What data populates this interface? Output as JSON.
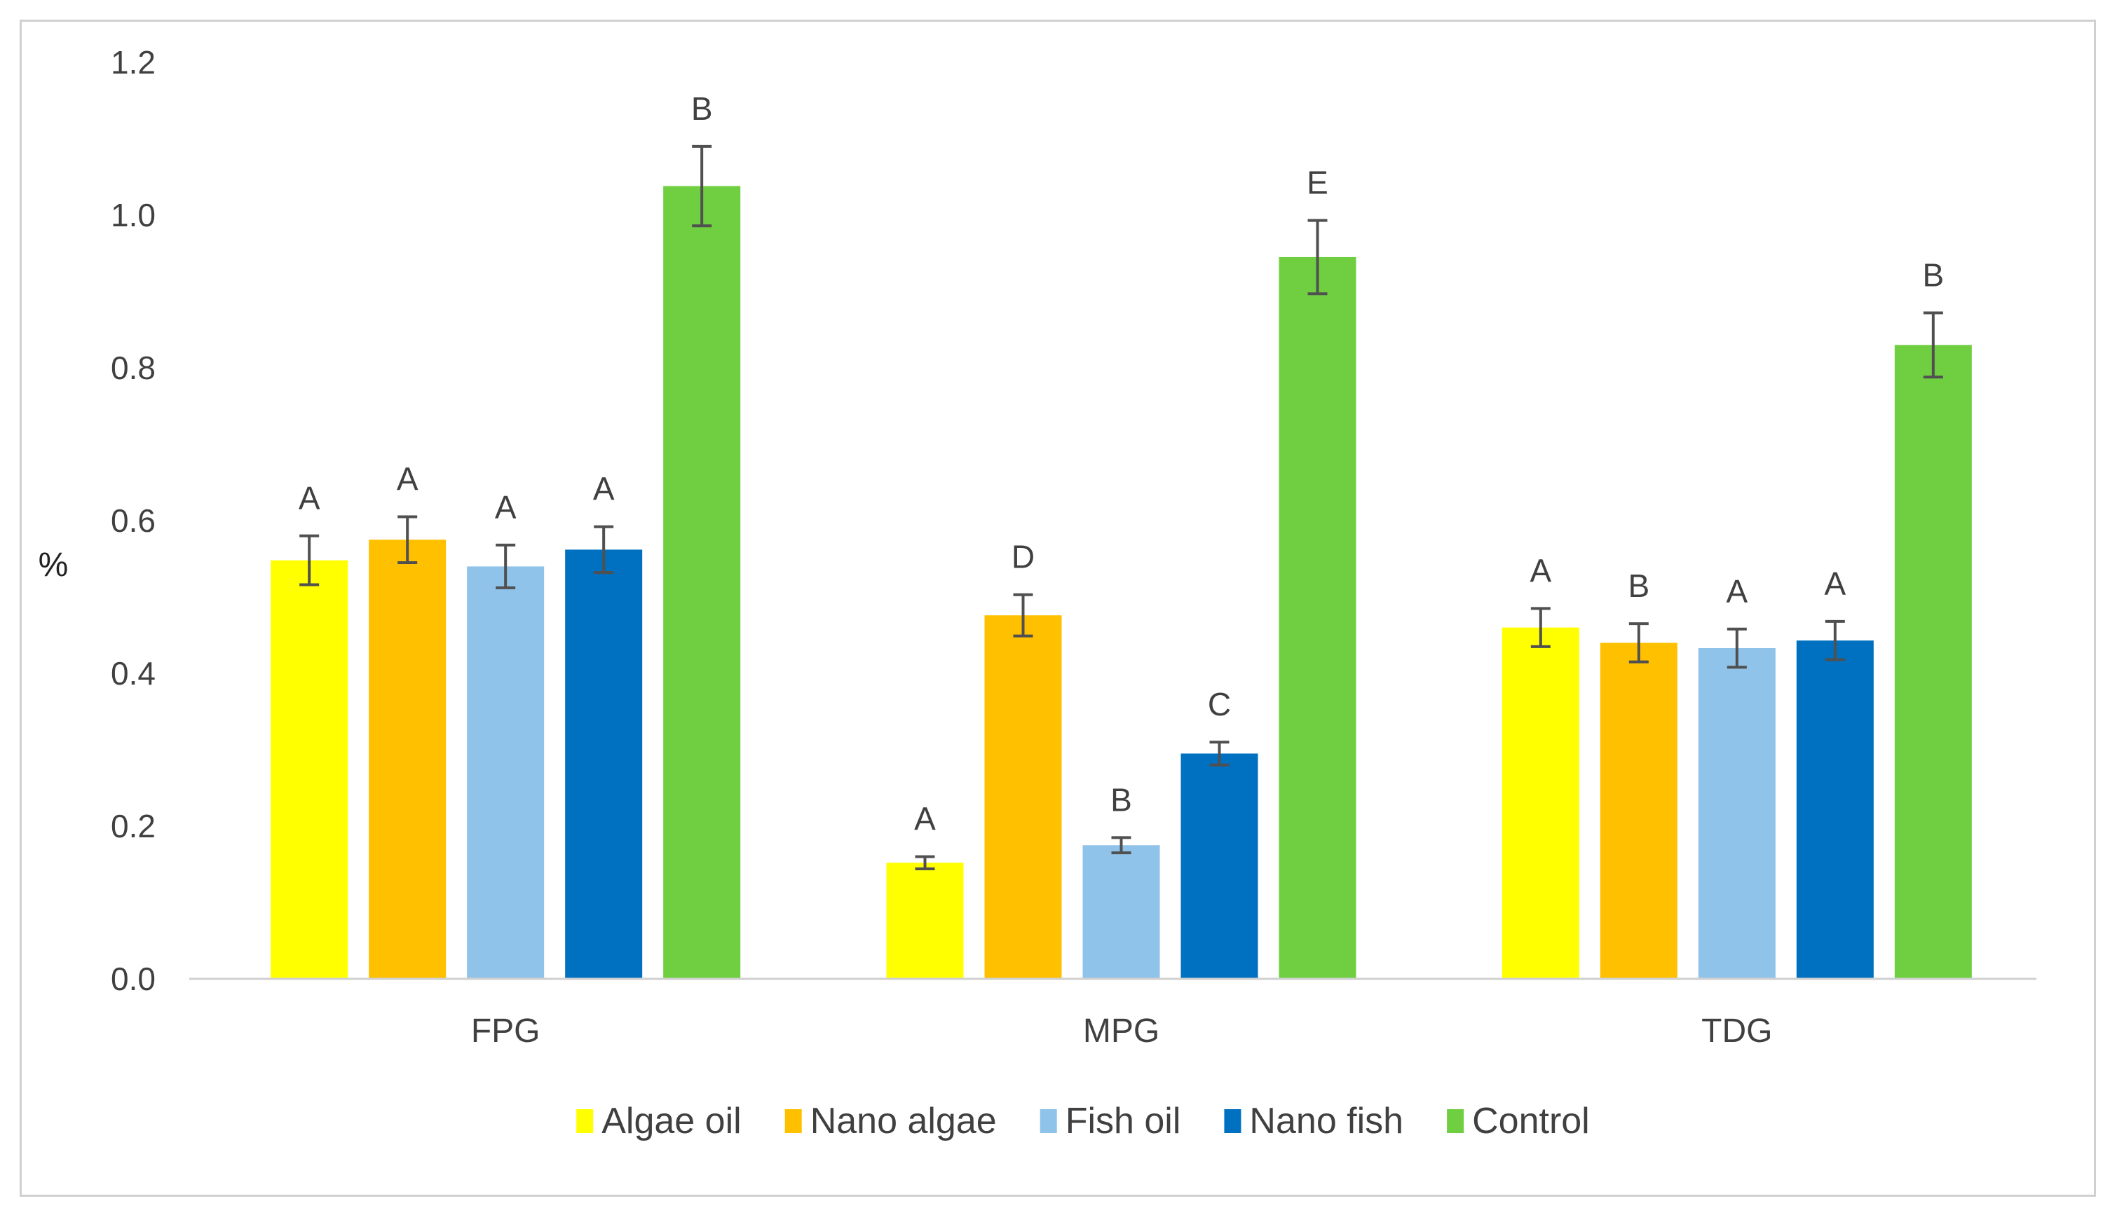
{
  "chart_data": {
    "type": "bar",
    "title": "",
    "xlabel": "",
    "ylabel": "%",
    "ylim": [
      0,
      1.2
    ],
    "yticks": [
      "0.0",
      "0.2",
      "0.4",
      "0.6",
      "0.8",
      "1.0",
      "1.2"
    ],
    "ytick_values": [
      0,
      0.2,
      0.4,
      0.6,
      0.8,
      1.0,
      1.2
    ],
    "grid": false,
    "legend_position": "bottom",
    "categories": [
      "FPG",
      "MPG",
      "TDG"
    ],
    "series": [
      {
        "name": "Algae oil",
        "color": "#ffff00",
        "values": [
          0.548,
          0.152,
          0.46
        ],
        "errors": [
          0.032,
          0.008,
          0.025
        ],
        "letters": [
          "A",
          "A",
          "A"
        ]
      },
      {
        "name": "Nano algae",
        "color": "#ffc000",
        "values": [
          0.575,
          0.476,
          0.44
        ],
        "errors": [
          0.03,
          0.027,
          0.025
        ],
        "letters": [
          "A",
          "D",
          "B"
        ]
      },
      {
        "name": "Fish oil",
        "color": "#8fc3e9",
        "values": [
          0.54,
          0.175,
          0.433
        ],
        "errors": [
          0.028,
          0.01,
          0.025
        ],
        "letters": [
          "A",
          "B",
          "A"
        ]
      },
      {
        "name": "Nano fish",
        "color": "#0070c0",
        "values": [
          0.562,
          0.295,
          0.443
        ],
        "errors": [
          0.03,
          0.015,
          0.025
        ],
        "letters": [
          "A",
          "C",
          "A"
        ]
      },
      {
        "name": "Control",
        "color": "#6fcf40",
        "values": [
          1.038,
          0.945,
          0.83
        ],
        "errors": [
          0.052,
          0.048,
          0.042
        ],
        "letters": [
          "B",
          "E",
          "B"
        ]
      }
    ]
  }
}
